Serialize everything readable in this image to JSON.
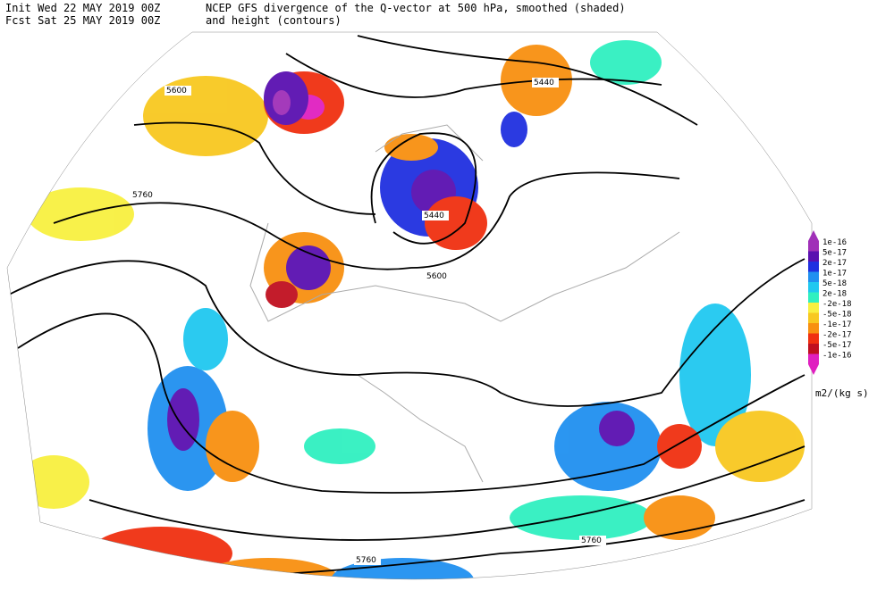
{
  "header": {
    "line1_left": "Init  Wed 22 MAY 2019 00Z",
    "line1_right": "NCEP GFS divergence of the Q-vector at 500 hPa, smoothed (shaded)",
    "line2_left": "Fcst Sat 25 MAY 2019 00Z",
    "line2_right": "and height (contours)"
  },
  "contour_labels": [
    "5600",
    "5440",
    "5760",
    "5440",
    "5600",
    "5760",
    "5760"
  ],
  "legend": {
    "unit": "m2/(kg s)",
    "items": [
      {
        "label": "1e-16",
        "color": "#a030b8"
      },
      {
        "label": "5e-17",
        "color": "#5a10b0"
      },
      {
        "label": "2e-17",
        "color": "#2030e0"
      },
      {
        "label": "1e-17",
        "color": "#2090f0"
      },
      {
        "label": "5e-18",
        "color": "#20c8f0"
      },
      {
        "label": "2e-18",
        "color": "#30f0c0"
      },
      {
        "label": "-2e-18",
        "color": "#f8f040"
      },
      {
        "label": "-5e-18",
        "color": "#f8c820"
      },
      {
        "label": "-1e-17",
        "color": "#f89010"
      },
      {
        "label": "-2e-17",
        "color": "#f03010"
      },
      {
        "label": "-5e-17",
        "color": "#c01020"
      },
      {
        "label": "-1e-16",
        "color": "#e020c0"
      }
    ]
  }
}
